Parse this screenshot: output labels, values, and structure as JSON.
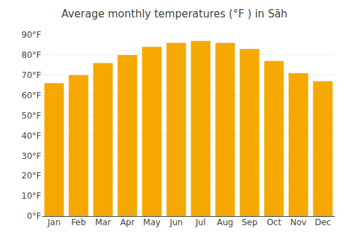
{
  "chart_data": {
    "type": "bar",
    "title": "Average monthly temperatures (°F ) in Sāh",
    "categories": [
      "Jan",
      "Feb",
      "Mar",
      "Apr",
      "May",
      "Jun",
      "Jul",
      "Aug",
      "Sep",
      "Oct",
      "Nov",
      "Dec"
    ],
    "values": [
      66,
      70,
      76,
      80,
      84,
      86,
      87,
      86,
      83,
      77,
      71,
      67
    ],
    "color": "#F5A800",
    "ylim": [
      0,
      90
    ],
    "yticks": [
      {
        "value": 0,
        "label": "0°F"
      },
      {
        "value": 10,
        "label": "10°F"
      },
      {
        "value": 20,
        "label": "20°F"
      },
      {
        "value": 30,
        "label": "30°F"
      },
      {
        "value": 40,
        "label": "40°F"
      },
      {
        "value": 50,
        "label": "50°F"
      },
      {
        "value": 60,
        "label": "60°F"
      },
      {
        "value": 70,
        "label": "70°F"
      },
      {
        "value": 80,
        "label": "80°F"
      },
      {
        "value": 90,
        "label": "90°F"
      }
    ],
    "grid": true
  }
}
